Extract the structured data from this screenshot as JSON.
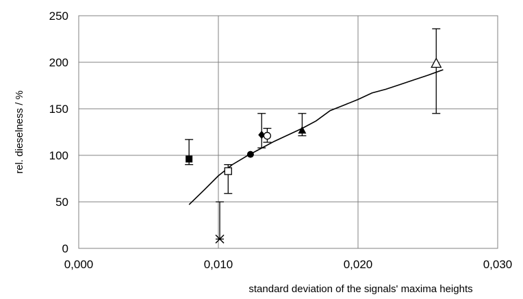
{
  "chart_data": {
    "type": "scatter",
    "title": "",
    "xlabel": "standard deviation of the signals' maxima heights",
    "ylabel": "rel. dieselness / %",
    "xlim": [
      0,
      0.03
    ],
    "ylim": [
      0,
      250
    ],
    "x_ticks": [
      0,
      0.01,
      0.02,
      0.03
    ],
    "x_tick_labels": [
      "0,000",
      "0,010",
      "0,020",
      "0,030"
    ],
    "y_ticks": [
      0,
      50,
      100,
      150,
      200,
      250
    ],
    "y_tick_labels": [
      "0",
      "50",
      "100",
      "150",
      "200",
      "250"
    ],
    "grid": true,
    "legend": "none",
    "points": [
      {
        "marker": "filled-square",
        "x": 0.0079,
        "y": 96,
        "err_low": 90,
        "err_high": 117
      },
      {
        "marker": "cross",
        "x": 0.0101,
        "y": 10,
        "err_low": 10,
        "err_high": 50
      },
      {
        "marker": "open-square",
        "x": 0.0107,
        "y": 83,
        "err_low": 59,
        "err_high": 90
      },
      {
        "marker": "filled-circle",
        "x": 0.0123,
        "y": 101,
        "err_low": null,
        "err_high": null
      },
      {
        "marker": "filled-diamond",
        "x": 0.0131,
        "y": 122,
        "err_low": 108,
        "err_high": 145
      },
      {
        "marker": "open-circle",
        "x": 0.0135,
        "y": 121,
        "err_low": 114,
        "err_high": 129
      },
      {
        "marker": "filled-triangle",
        "x": 0.016,
        "y": 127,
        "err_low": 121,
        "err_high": 145
      },
      {
        "marker": "open-triangle",
        "x": 0.0256,
        "y": 199,
        "err_low": 145,
        "err_high": 236
      }
    ],
    "series": [
      {
        "type": "line",
        "x": [
          0.0079,
          0.009,
          0.01,
          0.011,
          0.012,
          0.013,
          0.014,
          0.015,
          0.016,
          0.017,
          0.018,
          0.019,
          0.02,
          0.021,
          0.022,
          0.023,
          0.024,
          0.025,
          0.0261
        ],
        "y": [
          47,
          63,
          78,
          90,
          99,
          107,
          115,
          122,
          129,
          137,
          148,
          154,
          160,
          167,
          171,
          176,
          181,
          186,
          192
        ]
      }
    ]
  }
}
